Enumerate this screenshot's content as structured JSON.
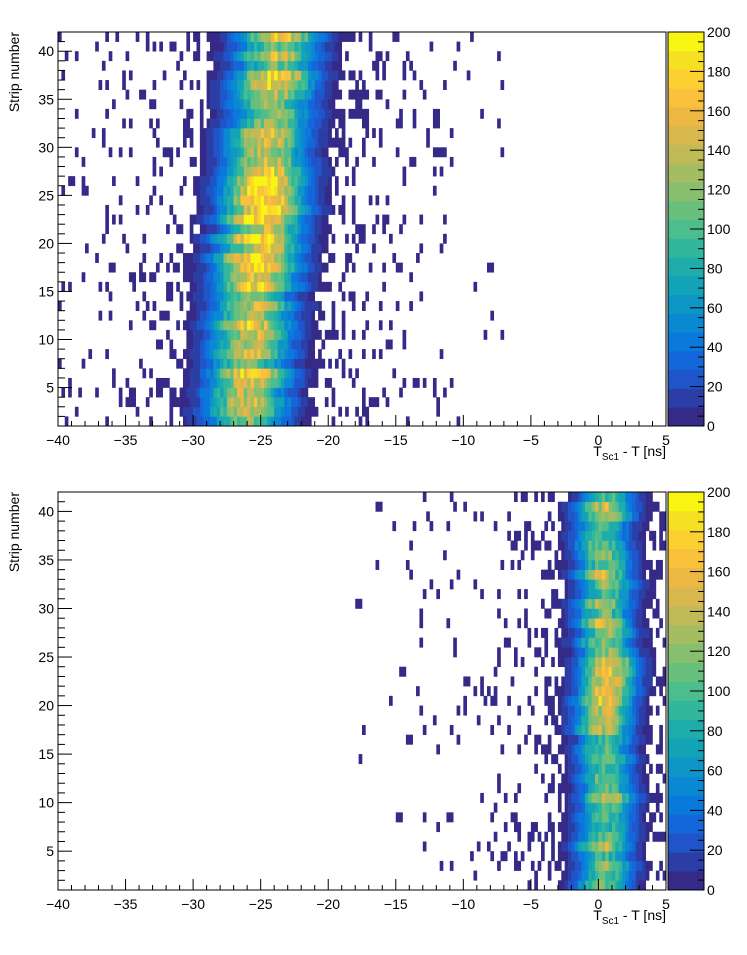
{
  "chart_data": [
    {
      "type": "heatmap",
      "xlabel_main": "T",
      "xlabel_sub": "Sc1",
      "xlabel_rest": " - T [ns]",
      "ylabel": "Strip number",
      "xlim": [
        -40,
        5
      ],
      "ylim": [
        1,
        42
      ],
      "x_ticks": [
        -40,
        -35,
        -30,
        -25,
        -20,
        -15,
        -10,
        -5,
        0,
        5
      ],
      "y_ticks": [
        5,
        10,
        15,
        20,
        25,
        30,
        35,
        40
      ],
      "z_ticks": [
        0,
        20,
        40,
        60,
        80,
        100,
        120,
        140,
        160,
        180,
        200
      ],
      "zlim": [
        0,
        200
      ],
      "distribution": {
        "peak_x_ns": -25.0,
        "sigma_x_ns": 1.9,
        "tail_extent_x_ns": [
          -40,
          -7
        ],
        "strip_shift_ns_per_strip": 0.06,
        "max_count": 205,
        "hot_strips": [
          20,
          22,
          23,
          24,
          25,
          26,
          17,
          18
        ]
      }
    },
    {
      "type": "heatmap",
      "xlabel_main": "T",
      "xlabel_sub": "Sc1",
      "xlabel_rest": " - T [ns]",
      "ylabel": "Strip number",
      "xlim": [
        -40,
        5
      ],
      "ylim": [
        1,
        42
      ],
      "x_ticks": [
        -40,
        -35,
        -30,
        -25,
        -20,
        -15,
        -10,
        -5,
        0,
        5
      ],
      "y_ticks": [
        5,
        10,
        15,
        20,
        25,
        30,
        35,
        40
      ],
      "z_ticks": [
        0,
        20,
        40,
        60,
        80,
        100,
        120,
        140,
        160,
        180,
        200
      ],
      "zlim": [
        0,
        200
      ],
      "distribution": {
        "peak_x_ns": 0.5,
        "sigma_x_ns": 1.3,
        "tail_extent_x_ns": [
          -18,
          5
        ],
        "strip_shift_ns_per_strip": 0.0,
        "max_count": 175,
        "hot_strips": [
          20,
          21,
          22,
          23,
          24
        ]
      }
    }
  ],
  "palette": [
    "#352a87",
    "#2b3ea6",
    "#1f55c9",
    "#1367d9",
    "#0a79dc",
    "#0b88d2",
    "#0e96c6",
    "#12a3b6",
    "#1eadab",
    "#32b79c",
    "#4cbd8c",
    "#69c07c",
    "#87bf6e",
    "#a5bd62",
    "#c0ba57",
    "#d8b84d",
    "#ecb743",
    "#fac13d",
    "#fbd030",
    "#f6e023",
    "#f9f512"
  ]
}
